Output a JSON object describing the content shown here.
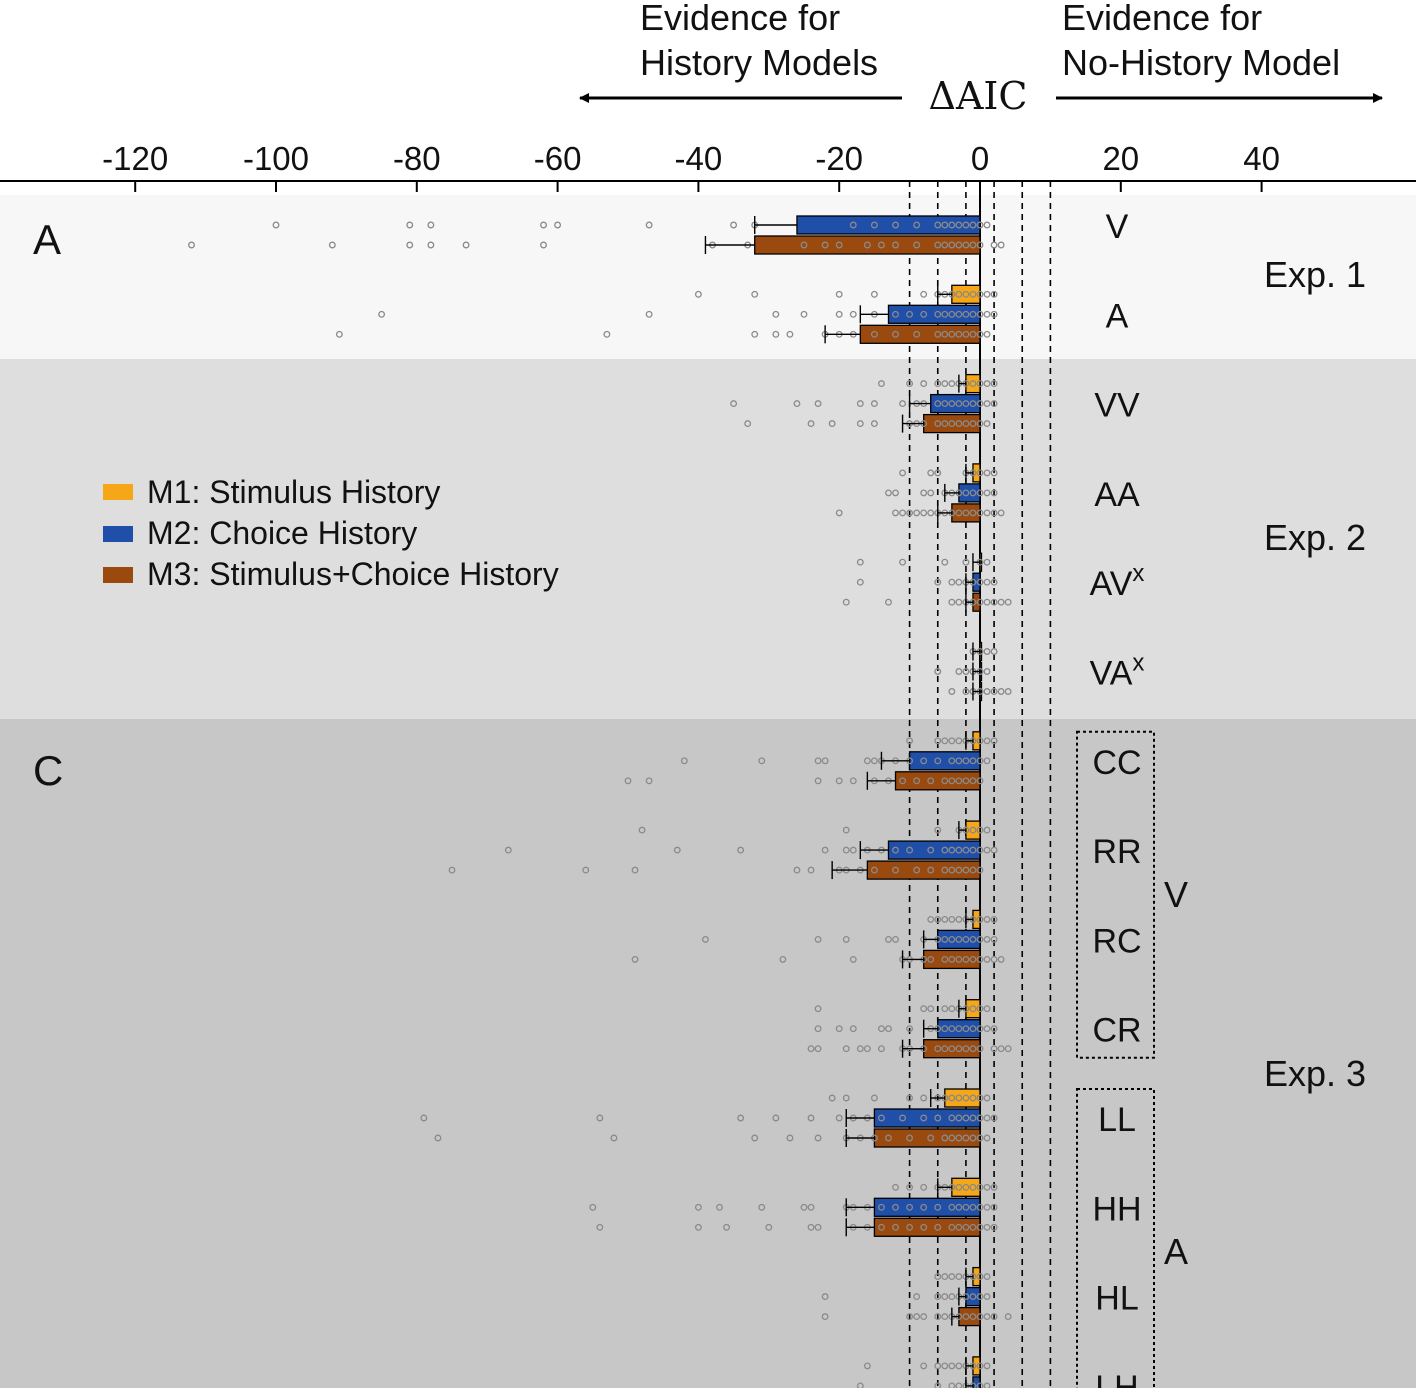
{
  "chart_data": {
    "type": "bar",
    "orientation": "horizontal",
    "header": {
      "left_line1": "Evidence for",
      "left_line2": "History Models",
      "right_line1": "Evidence for",
      "right_line2": "No-History Model",
      "center": "ΔAIC"
    },
    "x_axis": {
      "ticks": [
        -120,
        -100,
        -80,
        -60,
        -40,
        -20,
        0,
        20,
        40
      ],
      "tick_labels": [
        "-120",
        "-100",
        "-80",
        "-60",
        "-40",
        "-20",
        "0",
        "20",
        "40"
      ],
      "xlim": [
        -140,
        57
      ],
      "reference_lines": [
        -10,
        -6,
        -2,
        2,
        6,
        10
      ]
    },
    "legend": {
      "position": "center-left",
      "items": [
        {
          "label": "M1: Stimulus History",
          "color": "#F5A718"
        },
        {
          "label": "M2: Choice History",
          "color": "#1F4FA8"
        },
        {
          "label": "M3: Stimulus+Choice History",
          "color": "#9A4A0E"
        }
      ]
    },
    "panel_labels": [
      "A",
      "C"
    ],
    "groups": [
      {
        "label": "Exp. 1",
        "background": "#F7F7F7"
      },
      {
        "label": "Exp. 2",
        "background": "#DEDEDE"
      },
      {
        "label": "Exp. 3",
        "background": "#C7C7C7"
      }
    ],
    "brackets": [
      {
        "label": "V",
        "conditions": [
          "CC",
          "RR",
          "RC",
          "CR"
        ]
      },
      {
        "label": "A",
        "conditions": [
          "LL",
          "HH",
          "HL",
          "LH"
        ]
      }
    ],
    "conditions": [
      {
        "label": "V",
        "sup": "",
        "group": 0,
        "series": [
          {
            "model": "M2",
            "value": -26,
            "error": 6,
            "points": [
              -100,
              -81,
              -78,
              -62,
              -60,
              -47,
              -35,
              -32,
              -18,
              -15,
              -12,
              -9,
              -6,
              -5,
              -4,
              -3,
              -2,
              -1,
              0,
              1
            ]
          },
          {
            "model": "M3",
            "value": -32,
            "error": 7,
            "points": [
              -112,
              -92,
              -81,
              -78,
              -73,
              -62,
              -38,
              -33,
              -25,
              -22,
              -20,
              -16,
              -14,
              -12,
              -9,
              -6,
              -5,
              -4,
              -3,
              -2,
              -1,
              0,
              2,
              3
            ]
          }
        ]
      },
      {
        "label": "A",
        "sup": "",
        "group": 0,
        "series": [
          {
            "model": "M1",
            "value": -4,
            "error": 2,
            "points": [
              -40,
              -32,
              -20,
              -15,
              -8,
              -6,
              -5,
              -4,
              -3,
              -2,
              -1,
              0,
              1,
              2
            ]
          },
          {
            "model": "M2",
            "value": -13,
            "error": 4,
            "points": [
              -85,
              -47,
              -29,
              -25,
              -20,
              -18,
              -15,
              -12,
              -10,
              -8,
              -6,
              -5,
              -4,
              -3,
              -2,
              -1,
              0,
              1,
              2
            ]
          },
          {
            "model": "M3",
            "value": -17,
            "error": 5,
            "points": [
              -91,
              -53,
              -32,
              -29,
              -27,
              -22,
              -20,
              -18,
              -15,
              -12,
              -9,
              -6,
              -5,
              -4,
              -3,
              -2,
              -1,
              0,
              1
            ]
          }
        ]
      },
      {
        "label": "VV",
        "sup": "",
        "group": 1,
        "series": [
          {
            "model": "M1",
            "value": -2,
            "error": 1,
            "points": [
              -14,
              -10,
              -8,
              -6,
              -5,
              -4,
              -3,
              -2,
              -1,
              0,
              1,
              2
            ]
          },
          {
            "model": "M2",
            "value": -7,
            "error": 3,
            "points": [
              -35,
              -26,
              -23,
              -17,
              -15,
              -11,
              -9,
              -8,
              -6,
              -5,
              -4,
              -3,
              -2,
              -1,
              0,
              1,
              2
            ]
          },
          {
            "model": "M3",
            "value": -8,
            "error": 3,
            "points": [
              -33,
              -24,
              -21,
              -17,
              -15,
              -10,
              -9,
              -8,
              -6,
              -5,
              -4,
              -3,
              -2,
              -1,
              0,
              1
            ]
          }
        ]
      },
      {
        "label": "AA",
        "sup": "",
        "group": 1,
        "series": [
          {
            "model": "M1",
            "value": -1,
            "error": 1,
            "points": [
              -11,
              -7,
              -6,
              -2,
              -1,
              0,
              1,
              2
            ]
          },
          {
            "model": "M2",
            "value": -3,
            "error": 2,
            "points": [
              -13,
              -12,
              -8,
              -7,
              -5,
              -4,
              -3,
              -2,
              -1,
              0,
              1,
              2
            ]
          },
          {
            "model": "M3",
            "value": -4,
            "error": 2,
            "points": [
              -20,
              -12,
              -11,
              -10,
              -9,
              -8,
              -7,
              -6,
              -5,
              -4,
              -3,
              -2,
              -1,
              0,
              1,
              2,
              3
            ]
          }
        ]
      },
      {
        "label": "AV",
        "sup": "x",
        "group": 1,
        "series": [
          {
            "model": "M1",
            "value": 0,
            "error": 1,
            "points": [
              -17,
              -11,
              -5,
              -2,
              0,
              1
            ]
          },
          {
            "model": "M2",
            "value": -1,
            "error": 1,
            "points": [
              -17,
              -6,
              -4,
              -3,
              -2,
              -1,
              0,
              1,
              2
            ]
          },
          {
            "model": "M3",
            "value": -1,
            "error": 1,
            "points": [
              -19,
              -13,
              -4,
              -3,
              -2,
              -1,
              0,
              1,
              2,
              3,
              4
            ]
          }
        ]
      },
      {
        "label": "VA",
        "sup": "x",
        "group": 1,
        "series": [
          {
            "model": "M1",
            "value": 0,
            "error": 1,
            "points": [
              -1,
              0,
              1,
              2
            ]
          },
          {
            "model": "M2",
            "value": 0,
            "error": 1,
            "points": [
              -6,
              -3,
              -2,
              -1,
              0,
              1
            ]
          },
          {
            "model": "M3",
            "value": 0,
            "error": 1,
            "points": [
              -4,
              -2,
              -1,
              0,
              1,
              2,
              3,
              4
            ]
          }
        ]
      },
      {
        "label": "CC",
        "sup": "",
        "group": 2,
        "series": [
          {
            "model": "M1",
            "value": -1,
            "error": 1,
            "points": [
              -10,
              -6,
              -5,
              -4,
              -3,
              -2,
              -1,
              0,
              1,
              2
            ]
          },
          {
            "model": "M2",
            "value": -10,
            "error": 4,
            "points": [
              -42,
              -31,
              -23,
              -22,
              -16,
              -15,
              -14,
              -12,
              -10,
              -8,
              -6,
              -4,
              -3,
              -2,
              -1,
              0,
              1
            ]
          },
          {
            "model": "M3",
            "value": -12,
            "error": 4,
            "points": [
              -50,
              -47,
              -23,
              -20,
              -18,
              -15,
              -13,
              -11,
              -9,
              -7,
              -5,
              -4,
              -3,
              -2,
              -1,
              0
            ]
          }
        ]
      },
      {
        "label": "RR",
        "sup": "",
        "group": 2,
        "series": [
          {
            "model": "M1",
            "value": -2,
            "error": 1,
            "points": [
              -48,
              -19,
              -6,
              -3,
              -2,
              -1,
              0,
              1
            ]
          },
          {
            "model": "M2",
            "value": -13,
            "error": 4,
            "points": [
              -67,
              -43,
              -34,
              -22,
              -19,
              -18,
              -16,
              -14,
              -12,
              -10,
              -7,
              -5,
              -4,
              -3,
              -2,
              -1,
              0,
              1,
              2
            ]
          },
          {
            "model": "M3",
            "value": -16,
            "error": 5,
            "points": [
              -75,
              -56,
              -49,
              -26,
              -24,
              -20,
              -19,
              -17,
              -15,
              -12,
              -9,
              -7,
              -5,
              -4,
              -3,
              -2,
              -1,
              0
            ]
          }
        ]
      },
      {
        "label": "RC",
        "sup": "",
        "group": 2,
        "series": [
          {
            "model": "M1",
            "value": -1,
            "error": 1,
            "points": [
              -7,
              -6,
              -5,
              -4,
              -3,
              -2,
              -1,
              0,
              1,
              2
            ]
          },
          {
            "model": "M2",
            "value": -6,
            "error": 2,
            "points": [
              -39,
              -23,
              -19,
              -13,
              -12,
              -8,
              -6,
              -5,
              -4,
              -3,
              -2,
              -1,
              0,
              1,
              2
            ]
          },
          {
            "model": "M3",
            "value": -8,
            "error": 3,
            "points": [
              -49,
              -28,
              -18,
              -11,
              -10,
              -8,
              -7,
              -5,
              -4,
              -3,
              -2,
              -1,
              0,
              1,
              2,
              3
            ]
          }
        ]
      },
      {
        "label": "CR",
        "sup": "",
        "group": 2,
        "series": [
          {
            "model": "M1",
            "value": -2,
            "error": 1,
            "points": [
              -23,
              -8,
              -7,
              -5,
              -4,
              -3,
              -2,
              -1,
              0,
              1
            ]
          },
          {
            "model": "M2",
            "value": -6,
            "error": 2,
            "points": [
              -23,
              -20,
              -18,
              -14,
              -13,
              -10,
              -7,
              -6,
              -5,
              -4,
              -3,
              -2,
              -1,
              0,
              1,
              2
            ]
          },
          {
            "model": "M3",
            "value": -8,
            "error": 3,
            "points": [
              -24,
              -23,
              -19,
              -17,
              -16,
              -14,
              -11,
              -10,
              -8,
              -6,
              -5,
              -4,
              -3,
              -2,
              -1,
              0,
              2,
              3,
              4
            ]
          }
        ]
      },
      {
        "label": "LL",
        "sup": "",
        "group": 2,
        "series": [
          {
            "model": "M1",
            "value": -5,
            "error": 2,
            "points": [
              -21,
              -19,
              -15,
              -10,
              -8,
              -6,
              -5,
              -4,
              -3,
              -2,
              -1,
              0,
              1
            ]
          },
          {
            "model": "M2",
            "value": -15,
            "error": 4,
            "points": [
              -79,
              -54,
              -34,
              -29,
              -24,
              -20,
              -18,
              -16,
              -14,
              -11,
              -8,
              -6,
              -4,
              -3,
              -2,
              -1,
              0,
              1,
              2
            ]
          },
          {
            "model": "M3",
            "value": -15,
            "error": 4,
            "points": [
              -77,
              -52,
              -32,
              -27,
              -23,
              -19,
              -17,
              -15,
              -13,
              -10,
              -7,
              -5,
              -4,
              -3,
              -2,
              -1,
              0,
              1
            ]
          }
        ]
      },
      {
        "label": "HH",
        "sup": "",
        "group": 2,
        "series": [
          {
            "model": "M1",
            "value": -4,
            "error": 2,
            "points": [
              -12,
              -10,
              -8,
              -6,
              -5,
              -4,
              -3,
              -2,
              -1,
              0,
              1,
              2
            ]
          },
          {
            "model": "M2",
            "value": -15,
            "error": 4,
            "points": [
              -55,
              -40,
              -37,
              -31,
              -25,
              -24,
              -19,
              -18,
              -16,
              -14,
              -12,
              -10,
              -8,
              -6,
              -4,
              -3,
              -2,
              -1,
              0,
              1,
              2
            ]
          },
          {
            "model": "M3",
            "value": -15,
            "error": 4,
            "points": [
              -54,
              -40,
              -36,
              -30,
              -24,
              -23,
              -18,
              -16,
              -14,
              -12,
              -10,
              -8,
              -6,
              -4,
              -3,
              -2,
              -1,
              0,
              1,
              2
            ]
          }
        ]
      },
      {
        "label": "HL",
        "sup": "",
        "group": 2,
        "series": [
          {
            "model": "M1",
            "value": -1,
            "error": 1,
            "points": [
              -6,
              -5,
              -4,
              -3,
              -2,
              -1,
              0,
              1
            ]
          },
          {
            "model": "M2",
            "value": -2,
            "error": 1,
            "points": [
              -22,
              -9,
              -6,
              -5,
              -4,
              -3,
              -2,
              -1,
              0,
              1
            ]
          },
          {
            "model": "M3",
            "value": -3,
            "error": 1,
            "points": [
              -22,
              -10,
              -9,
              -8,
              -6,
              -5,
              -4,
              -3,
              -2,
              -1,
              0,
              1,
              2,
              4
            ]
          }
        ]
      },
      {
        "label": "LH",
        "sup": "",
        "group": 2,
        "series": [
          {
            "model": "M1",
            "value": -1,
            "error": 1,
            "points": [
              -16,
              -8,
              -6,
              -5,
              -4,
              -3,
              -2,
              -1,
              0,
              1
            ]
          },
          {
            "model": "M2",
            "value": -1,
            "error": 1,
            "points": [
              -17,
              -6,
              -4,
              -3,
              -2,
              -1,
              0,
              1
            ]
          }
        ]
      }
    ]
  }
}
